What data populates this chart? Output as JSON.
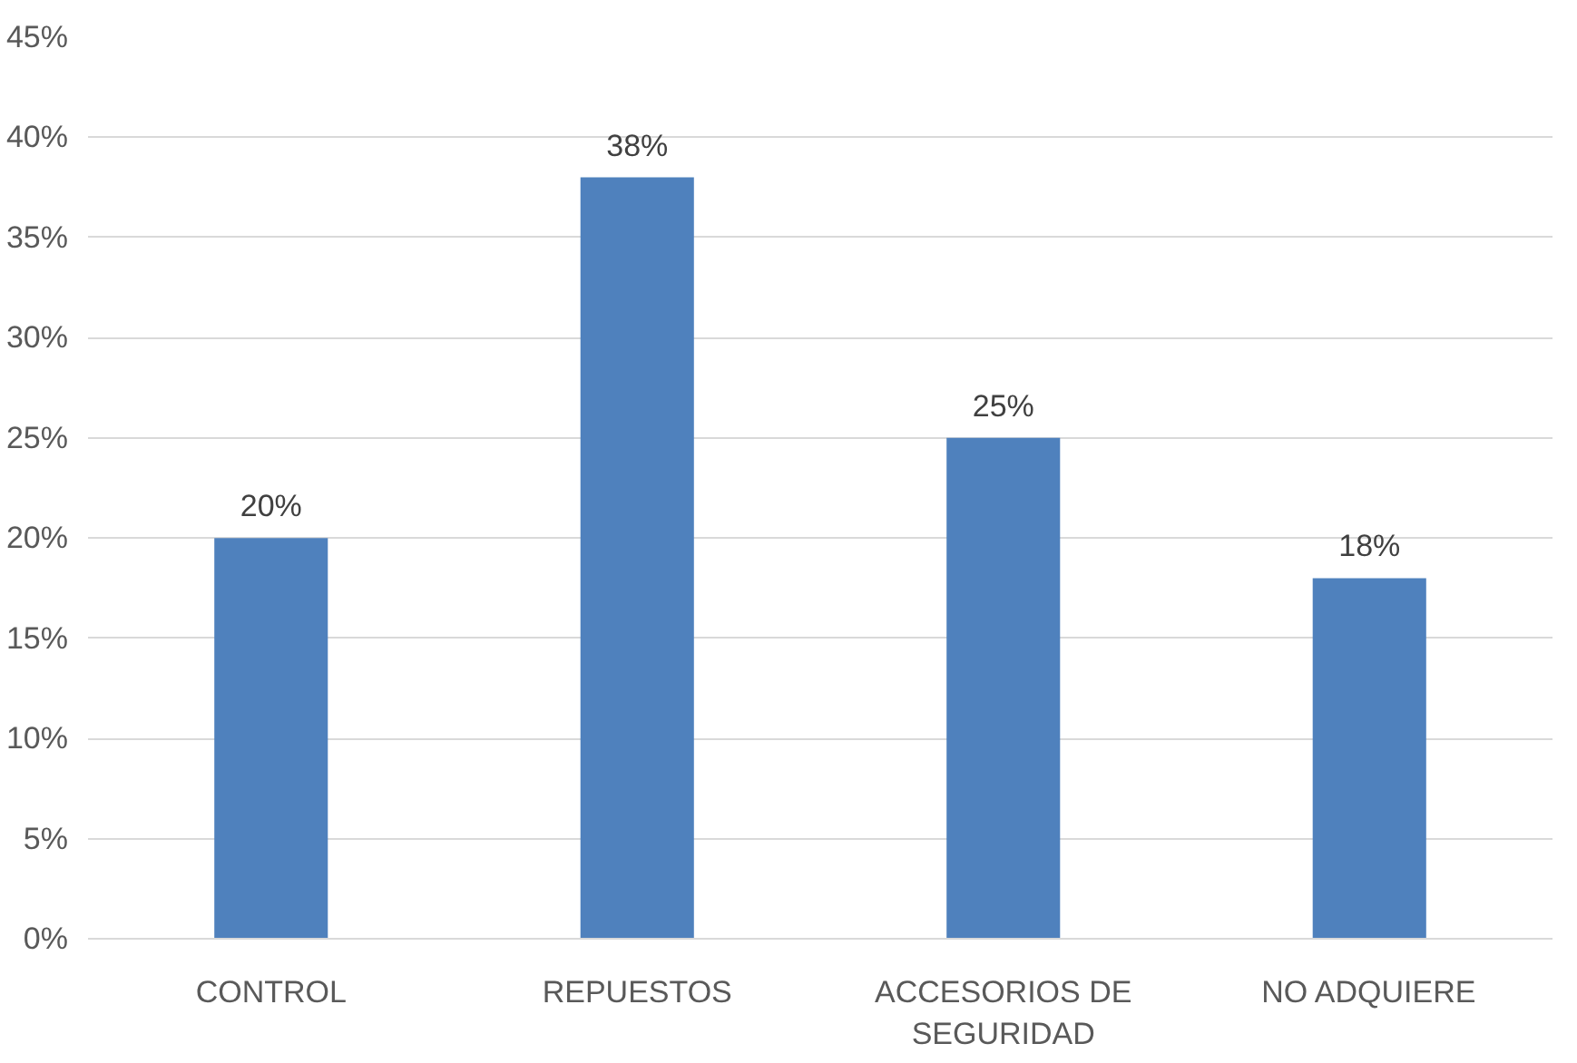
{
  "chart_data": {
    "type": "bar",
    "categories": [
      "CONTROL",
      "REPUESTOS",
      "ACCESORIOS DE\nSEGURIDAD",
      "NO ADQUIERE"
    ],
    "values": [
      20,
      38,
      25,
      18
    ],
    "color": "#4f81bd",
    "value_labels": [
      "20%",
      "38%",
      "25%",
      "18%"
    ],
    "ylim": [
      0,
      45
    ],
    "yticks": [
      {
        "value": 0,
        "label": "0%"
      },
      {
        "value": 5,
        "label": "5%"
      },
      {
        "value": 10,
        "label": "10%"
      },
      {
        "value": 15,
        "label": "15%"
      },
      {
        "value": 20,
        "label": "20%"
      },
      {
        "value": 25,
        "label": "25%"
      },
      {
        "value": 30,
        "label": "30%"
      },
      {
        "value": 35,
        "label": "35%"
      },
      {
        "value": 40,
        "label": "40%"
      },
      {
        "value": 45,
        "label": "45%"
      }
    ],
    "grid": "y"
  }
}
